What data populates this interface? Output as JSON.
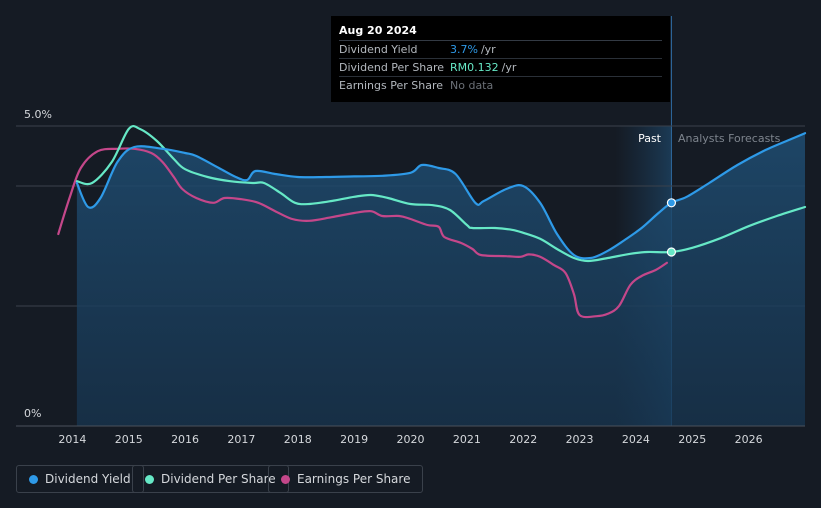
{
  "tooltip": {
    "date": "Aug 20 2024",
    "rows": [
      {
        "label": "Dividend Yield",
        "value": "3.7%",
        "unit": "/yr",
        "color": "#2e9ae8"
      },
      {
        "label": "Dividend Per Share",
        "value": "RM0.132",
        "unit": "/yr",
        "color": "#66e8c6"
      },
      {
        "label": "Earnings Per Share",
        "value": "No data",
        "unit": "",
        "color": "#6b7077"
      }
    ]
  },
  "labels": {
    "past": "Past",
    "forecast": "Analysts Forecasts"
  },
  "legend": [
    {
      "label": "Dividend Yield",
      "color": "#2e9ae8"
    },
    {
      "label": "Dividend Per Share",
      "color": "#66e8c6"
    },
    {
      "label": "Earnings Per Share",
      "color": "#c4478a"
    }
  ],
  "chart_data": {
    "type": "line",
    "y_ticks": [
      "5.0%",
      "0%"
    ],
    "ylim": [
      0,
      5.0
    ],
    "xlim": [
      2013.0,
      2027.0
    ],
    "x_ticks": [
      "2014",
      "2015",
      "2016",
      "2017",
      "2018",
      "2019",
      "2020",
      "2021",
      "2022",
      "2023",
      "2024",
      "2025",
      "2026"
    ],
    "past_end": 2024.63,
    "forecast_shade_start": 2023.63,
    "grid": true,
    "series": [
      {
        "name": "Dividend Yield",
        "color": "#2e9ae8",
        "area": true,
        "points": [
          [
            2014.08,
            4.05
          ],
          [
            2014.28,
            3.65
          ],
          [
            2014.5,
            3.8
          ],
          [
            2014.8,
            4.4
          ],
          [
            2015.1,
            4.65
          ],
          [
            2015.6,
            4.62
          ],
          [
            2016.0,
            4.55
          ],
          [
            2016.2,
            4.5
          ],
          [
            2016.6,
            4.3
          ],
          [
            2016.9,
            4.15
          ],
          [
            2017.1,
            4.1
          ],
          [
            2017.25,
            4.25
          ],
          [
            2017.6,
            4.2
          ],
          [
            2018.0,
            4.15
          ],
          [
            2018.5,
            4.15
          ],
          [
            2019.0,
            4.16
          ],
          [
            2019.5,
            4.17
          ],
          [
            2020.0,
            4.22
          ],
          [
            2020.2,
            4.35
          ],
          [
            2020.5,
            4.3
          ],
          [
            2020.8,
            4.2
          ],
          [
            2021.15,
            3.72
          ],
          [
            2021.3,
            3.75
          ],
          [
            2021.7,
            3.95
          ],
          [
            2022.0,
            4.0
          ],
          [
            2022.3,
            3.72
          ],
          [
            2022.6,
            3.2
          ],
          [
            2022.9,
            2.85
          ],
          [
            2023.2,
            2.8
          ],
          [
            2023.5,
            2.92
          ],
          [
            2023.8,
            3.1
          ],
          [
            2024.1,
            3.3
          ],
          [
            2024.4,
            3.55
          ],
          [
            2024.63,
            3.72
          ],
          [
            2024.9,
            3.82
          ],
          [
            2025.3,
            4.05
          ],
          [
            2025.8,
            4.35
          ],
          [
            2026.3,
            4.6
          ],
          [
            2026.8,
            4.8
          ],
          [
            2027.0,
            4.88
          ]
        ]
      },
      {
        "name": "Dividend Per Share",
        "color": "#66e8c6",
        "area": false,
        "points": [
          [
            2014.08,
            4.08
          ],
          [
            2014.35,
            4.05
          ],
          [
            2014.7,
            4.4
          ],
          [
            2015.0,
            4.95
          ],
          [
            2015.2,
            4.95
          ],
          [
            2015.5,
            4.75
          ],
          [
            2015.8,
            4.45
          ],
          [
            2016.0,
            4.28
          ],
          [
            2016.4,
            4.15
          ],
          [
            2016.8,
            4.08
          ],
          [
            2017.2,
            4.05
          ],
          [
            2017.4,
            4.05
          ],
          [
            2017.7,
            3.88
          ],
          [
            2017.95,
            3.72
          ],
          [
            2018.2,
            3.7
          ],
          [
            2018.6,
            3.75
          ],
          [
            2019.0,
            3.82
          ],
          [
            2019.3,
            3.85
          ],
          [
            2019.6,
            3.8
          ],
          [
            2020.0,
            3.7
          ],
          [
            2020.4,
            3.68
          ],
          [
            2020.7,
            3.6
          ],
          [
            2021.0,
            3.35
          ],
          [
            2021.1,
            3.3
          ],
          [
            2021.5,
            3.3
          ],
          [
            2021.8,
            3.27
          ],
          [
            2022.0,
            3.22
          ],
          [
            2022.3,
            3.12
          ],
          [
            2022.6,
            2.95
          ],
          [
            2022.9,
            2.8
          ],
          [
            2023.15,
            2.75
          ],
          [
            2023.5,
            2.8
          ],
          [
            2023.9,
            2.87
          ],
          [
            2024.2,
            2.9
          ],
          [
            2024.63,
            2.9
          ],
          [
            2025.0,
            2.97
          ],
          [
            2025.5,
            3.13
          ],
          [
            2026.0,
            3.33
          ],
          [
            2026.5,
            3.5
          ],
          [
            2027.0,
            3.65
          ]
        ]
      },
      {
        "name": "Earnings Per Share",
        "color": "#c4478a",
        "area": false,
        "points": [
          [
            2013.75,
            3.2
          ],
          [
            2013.95,
            3.8
          ],
          [
            2014.15,
            4.3
          ],
          [
            2014.45,
            4.58
          ],
          [
            2014.8,
            4.62
          ],
          [
            2015.1,
            4.62
          ],
          [
            2015.4,
            4.55
          ],
          [
            2015.6,
            4.4
          ],
          [
            2015.8,
            4.15
          ],
          [
            2015.95,
            3.95
          ],
          [
            2016.2,
            3.8
          ],
          [
            2016.5,
            3.72
          ],
          [
            2016.7,
            3.8
          ],
          [
            2017.0,
            3.78
          ],
          [
            2017.3,
            3.72
          ],
          [
            2017.6,
            3.58
          ],
          [
            2017.9,
            3.45
          ],
          [
            2018.2,
            3.42
          ],
          [
            2018.6,
            3.48
          ],
          [
            2019.0,
            3.55
          ],
          [
            2019.3,
            3.58
          ],
          [
            2019.5,
            3.5
          ],
          [
            2019.8,
            3.5
          ],
          [
            2020.0,
            3.45
          ],
          [
            2020.3,
            3.35
          ],
          [
            2020.5,
            3.32
          ],
          [
            2020.6,
            3.15
          ],
          [
            2020.9,
            3.05
          ],
          [
            2021.1,
            2.95
          ],
          [
            2021.25,
            2.85
          ],
          [
            2021.7,
            2.83
          ],
          [
            2021.95,
            2.82
          ],
          [
            2022.1,
            2.86
          ],
          [
            2022.3,
            2.82
          ],
          [
            2022.55,
            2.68
          ],
          [
            2022.75,
            2.55
          ],
          [
            2022.9,
            2.2
          ],
          [
            2023.0,
            1.85
          ],
          [
            2023.3,
            1.83
          ],
          [
            2023.5,
            1.87
          ],
          [
            2023.7,
            2.0
          ],
          [
            2023.9,
            2.35
          ],
          [
            2024.1,
            2.5
          ],
          [
            2024.35,
            2.6
          ],
          [
            2024.55,
            2.72
          ]
        ]
      }
    ]
  }
}
